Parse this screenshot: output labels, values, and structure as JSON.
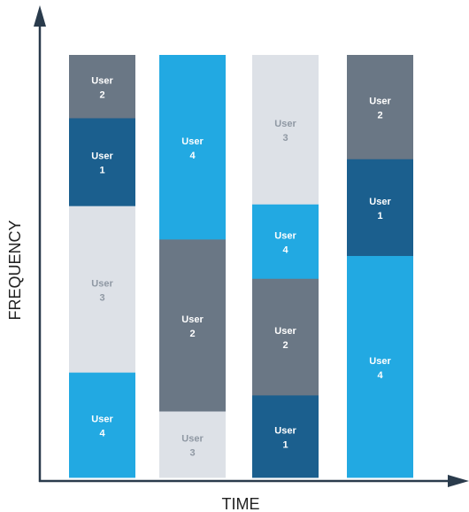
{
  "chart_data": {
    "type": "bar",
    "stacked": true,
    "xlabel": "TIME",
    "ylabel": "FREQUENCY",
    "grid": false,
    "legend": "none",
    "segment_text_prefix": "User",
    "colors": {
      "User 1": "#1b5f8e",
      "User 2": "#6a7785",
      "User 3": "#dde1e7",
      "User 4": "#22a9e2",
      "axis": "#2a3b4c"
    },
    "text_colors": {
      "light": "#ffffff",
      "dark": "#8f98a3"
    },
    "bars": [
      {
        "segments": [
          {
            "user": "User 4",
            "number": "4",
            "value": 24.9
          },
          {
            "user": "User 3",
            "number": "3",
            "value": 39.4
          },
          {
            "user": "User 1",
            "number": "1",
            "value": 20.8
          },
          {
            "user": "User 2",
            "number": "2",
            "value": 14.9
          }
        ]
      },
      {
        "segments": [
          {
            "user": "User 3",
            "number": "3",
            "value": 15.7
          },
          {
            "user": "User 2",
            "number": "2",
            "value": 40.7
          },
          {
            "user": "User 4",
            "number": "4",
            "value": 43.6
          }
        ]
      },
      {
        "segments": [
          {
            "user": "User 1",
            "number": "1",
            "value": 19.5
          },
          {
            "user": "User 2",
            "number": "2",
            "value": 27.6
          },
          {
            "user": "User 4",
            "number": "4",
            "value": 17.6
          },
          {
            "user": "User 3",
            "number": "3",
            "value": 35.3
          }
        ]
      },
      {
        "segments": [
          {
            "user": "User 4",
            "number": "4",
            "value": 52.5
          },
          {
            "user": "User 1",
            "number": "1",
            "value": 22.9
          },
          {
            "user": "User 2",
            "number": "2",
            "value": 24.6
          }
        ]
      }
    ]
  }
}
